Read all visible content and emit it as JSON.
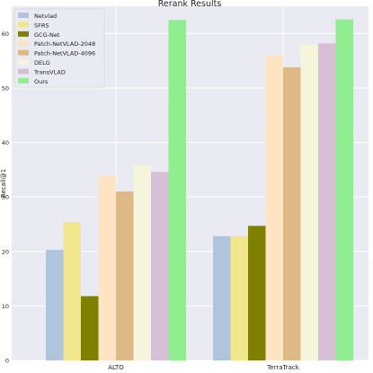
{
  "chart_data": {
    "type": "bar",
    "title": "Rerank Results",
    "xlabel": "",
    "ylabel": "Recall@1",
    "ylim": [
      0,
      65
    ],
    "yticks": [
      0,
      10,
      20,
      30,
      40,
      50,
      60
    ],
    "grid": true,
    "legend_position": "top-left",
    "categories": [
      "ALTO",
      "TerraTrack"
    ],
    "series": [
      {
        "name": "Netvlad",
        "color": "#b0c4de",
        "values": [
          20.3,
          22.8
        ]
      },
      {
        "name": "SFRS",
        "color": "#f0e68c",
        "values": [
          25.4,
          22.8
        ]
      },
      {
        "name": "GCG-Net",
        "color": "#808000",
        "values": [
          11.8,
          24.7
        ]
      },
      {
        "name": "Patch-NetVLAD-2048",
        "color": "#ffe4c4",
        "values": [
          33.9,
          56.0
        ]
      },
      {
        "name": "Patch-NetVLAD-4096",
        "color": "#deb887",
        "values": [
          31.0,
          53.8
        ]
      },
      {
        "name": "DELG",
        "color": "#f5f5dc",
        "values": [
          35.8,
          58.0
        ]
      },
      {
        "name": "TransVLAD",
        "color": "#d8bfd8",
        "values": [
          34.6,
          58.2
        ]
      },
      {
        "name": "Ours",
        "color": "#90ee90",
        "values": [
          62.5,
          62.6
        ]
      }
    ]
  }
}
